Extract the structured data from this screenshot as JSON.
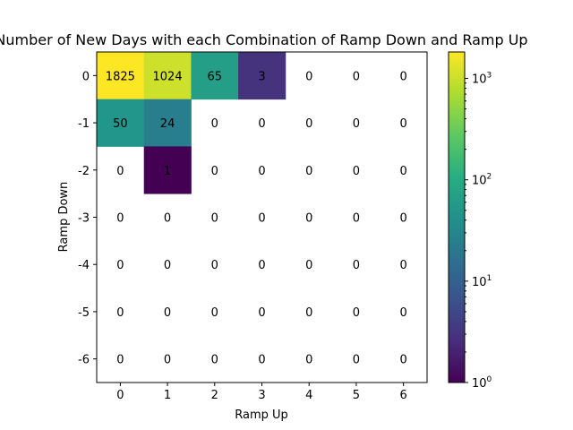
{
  "chart_data": {
    "type": "heatmap",
    "title": "Number of New Days with each Combination of Ramp Down and Ramp Up",
    "xlabel": "Ramp Up",
    "ylabel": "Ramp Down",
    "x_ticks": [
      "0",
      "1",
      "2",
      "3",
      "4",
      "5",
      "6"
    ],
    "y_ticks": [
      "0",
      "-1",
      "-2",
      "-3",
      "-4",
      "-5",
      "-6"
    ],
    "values": [
      [
        1825,
        1024,
        65,
        3,
        0,
        0,
        0
      ],
      [
        50,
        24,
        0,
        0,
        0,
        0,
        0
      ],
      [
        0,
        1,
        0,
        0,
        0,
        0,
        0
      ],
      [
        0,
        0,
        0,
        0,
        0,
        0,
        0
      ],
      [
        0,
        0,
        0,
        0,
        0,
        0,
        0
      ],
      [
        0,
        0,
        0,
        0,
        0,
        0,
        0
      ],
      [
        0,
        0,
        0,
        0,
        0,
        0,
        0
      ]
    ],
    "colormap": "viridis",
    "color_scale": "log",
    "color_range": [
      1,
      1825
    ],
    "zero_cells": "white",
    "colorbar": {
      "ticks": [
        {
          "value": 1,
          "base": "10",
          "exp": "0"
        },
        {
          "value": 10,
          "base": "10",
          "exp": "1"
        },
        {
          "value": 100,
          "base": "10",
          "exp": "2"
        },
        {
          "value": 1000,
          "base": "10",
          "exp": "3"
        }
      ]
    },
    "grid": false
  }
}
